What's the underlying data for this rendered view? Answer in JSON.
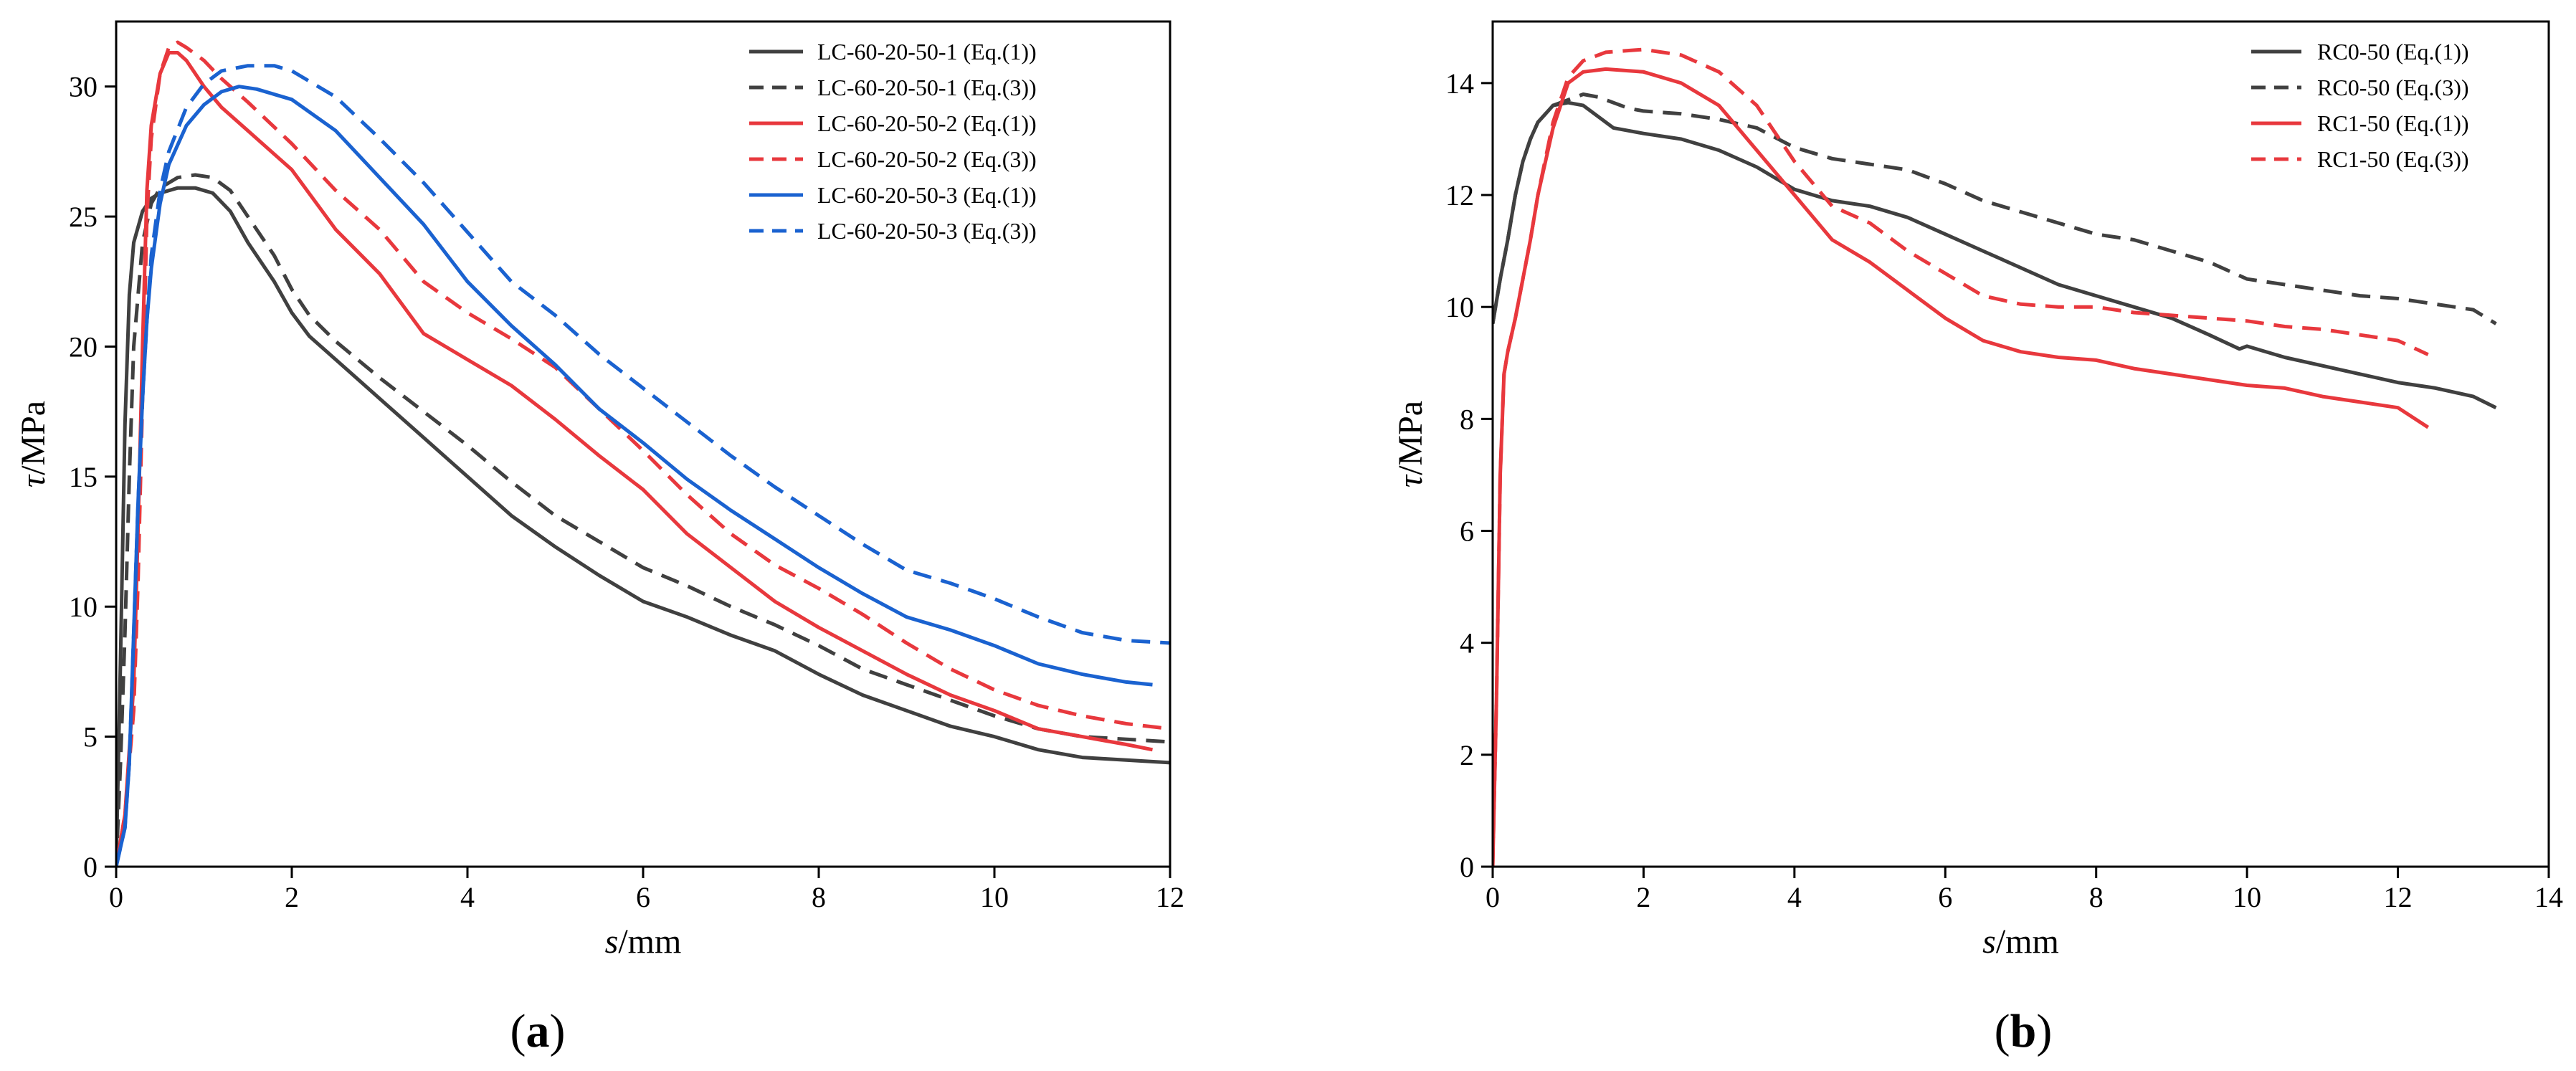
{
  "chart_data": [
    {
      "id": "a",
      "type": "line",
      "panel_label": "a",
      "xlabel_var": "s",
      "xlabel_unit": "/mm",
      "ylabel_var": "τ",
      "ylabel_unit": "/MPa",
      "xlim": [
        0,
        12
      ],
      "ylim": [
        0,
        32.5
      ],
      "xticks": [
        0,
        2,
        4,
        6,
        8,
        10,
        12
      ],
      "yticks": [
        0,
        5,
        10,
        15,
        20,
        25,
        30
      ],
      "legend_position": "top-right",
      "series": [
        {
          "name": "LC-60-20-50-1 (Eq.(1))",
          "color": "#404040",
          "style": "solid",
          "x": [
            0,
            0.05,
            0.1,
            0.15,
            0.2,
            0.3,
            0.4,
            0.5,
            0.7,
            0.9,
            1.1,
            1.3,
            1.5,
            1.8,
            2.0,
            2.2,
            2.5,
            3.0,
            3.5,
            4.0,
            4.5,
            5.0,
            5.5,
            6.0,
            6.5,
            7.0,
            7.5,
            8.0,
            8.5,
            9.0,
            9.5,
            10.0,
            10.5,
            11.0,
            11.5,
            12.0
          ],
          "y": [
            0,
            8,
            17,
            22,
            24,
            25.2,
            25.7,
            25.9,
            26.1,
            26.1,
            25.9,
            25.2,
            24,
            22.5,
            21.3,
            20.4,
            19.5,
            18,
            16.5,
            15,
            13.5,
            12.3,
            11.2,
            10.2,
            9.6,
            8.9,
            8.3,
            7.4,
            6.6,
            6,
            5.4,
            5,
            4.5,
            4.2,
            4.1,
            4
          ]
        },
        {
          "name": "LC-60-20-50-1 (Eq.(3))",
          "color": "#404040",
          "style": "dashed",
          "x": [
            0,
            0.05,
            0.1,
            0.15,
            0.2,
            0.3,
            0.4,
            0.5,
            0.7,
            0.9,
            1.1,
            1.3,
            1.5,
            1.8,
            2.0,
            2.2,
            2.5,
            3.0,
            3.5,
            4.0,
            4.5,
            5.0,
            5.5,
            6.0,
            6.5,
            7.0,
            7.5,
            8.0,
            8.5,
            9.0,
            9.5,
            10.0,
            10.5,
            11.0,
            11.5,
            12.0
          ],
          "y": [
            0,
            4,
            9,
            15,
            20,
            24,
            25.5,
            26.1,
            26.5,
            26.6,
            26.5,
            26,
            25,
            23.5,
            22.2,
            21.2,
            20.2,
            18.8,
            17.5,
            16.2,
            14.8,
            13.5,
            12.5,
            11.5,
            10.8,
            10,
            9.3,
            8.5,
            7.6,
            7,
            6.4,
            5.8,
            5.3,
            5,
            4.9,
            4.8
          ]
        },
        {
          "name": "LC-60-20-50-2 (Eq.(1))",
          "color": "#e8383d",
          "style": "solid",
          "x": [
            0,
            0.1,
            0.2,
            0.25,
            0.3,
            0.35,
            0.4,
            0.5,
            0.6,
            0.7,
            0.8,
            1.0,
            1.2,
            1.5,
            2.0,
            2.5,
            3.0,
            3.5,
            4.0,
            4.5,
            5.0,
            5.5,
            6.0,
            6.5,
            7.0,
            7.5,
            8.0,
            8.5,
            9.0,
            9.5,
            10.0,
            10.5,
            11.0,
            11.5,
            11.8
          ],
          "y": [
            0,
            2,
            7,
            13,
            20,
            26,
            28.5,
            30.5,
            31.3,
            31.3,
            31,
            30,
            29.2,
            28.3,
            26.8,
            24.5,
            22.8,
            20.5,
            19.5,
            18.5,
            17.2,
            15.8,
            14.5,
            12.8,
            11.5,
            10.2,
            9.2,
            8.3,
            7.4,
            6.6,
            6,
            5.3,
            5,
            4.7,
            4.5
          ]
        },
        {
          "name": "LC-60-20-50-2 (Eq.(3))",
          "color": "#e8383d",
          "style": "dashed",
          "x": [
            0,
            0.1,
            0.2,
            0.25,
            0.3,
            0.35,
            0.4,
            0.5,
            0.6,
            0.7,
            0.8,
            1.0,
            1.2,
            1.5,
            2.0,
            2.5,
            3.0,
            3.5,
            4.0,
            4.5,
            5.0,
            5.5,
            6.0,
            6.5,
            7.0,
            7.5,
            8.0,
            8.5,
            9.0,
            9.5,
            10.0,
            10.5,
            11.0,
            11.5,
            12.0
          ],
          "y": [
            0,
            2,
            6,
            11,
            18,
            25,
            28,
            30.5,
            31.5,
            31.7,
            31.5,
            31,
            30.3,
            29.4,
            27.8,
            26,
            24.5,
            22.5,
            21.3,
            20.3,
            19.2,
            17.6,
            16,
            14.3,
            12.8,
            11.6,
            10.7,
            9.7,
            8.6,
            7.6,
            6.8,
            6.2,
            5.8,
            5.5,
            5.3
          ]
        },
        {
          "name": "LC-60-20-50-3 (Eq.(1))",
          "color": "#1a62d0",
          "style": "solid",
          "x": [
            0,
            0.1,
            0.15,
            0.2,
            0.25,
            0.3,
            0.35,
            0.4,
            0.5,
            0.6,
            0.8,
            1.0,
            1.2,
            1.4,
            1.6,
            2.0,
            2.5,
            3.0,
            3.5,
            4.0,
            4.5,
            5.0,
            5.5,
            6.0,
            6.5,
            7.0,
            7.5,
            8.0,
            8.5,
            9.0,
            9.5,
            10.0,
            10.5,
            11.0,
            11.5,
            11.8
          ],
          "y": [
            0,
            1.5,
            4,
            9,
            14,
            18,
            21,
            23,
            25.5,
            27,
            28.5,
            29.3,
            29.8,
            30,
            29.9,
            29.5,
            28.3,
            26.5,
            24.7,
            22.5,
            20.8,
            19.3,
            17.6,
            16.3,
            14.9,
            13.7,
            12.6,
            11.5,
            10.5,
            9.6,
            9.1,
            8.5,
            7.8,
            7.4,
            7.1,
            7
          ]
        },
        {
          "name": "LC-60-20-50-3 (Eq.(3))",
          "color": "#1a62d0",
          "style": "dashed",
          "x": [
            0,
            0.1,
            0.15,
            0.2,
            0.25,
            0.3,
            0.35,
            0.4,
            0.5,
            0.6,
            0.8,
            1.0,
            1.2,
            1.5,
            1.8,
            2.0,
            2.5,
            3.0,
            3.5,
            4.0,
            4.5,
            5.0,
            5.5,
            6.0,
            6.5,
            7.0,
            7.5,
            8.0,
            8.5,
            9.0,
            9.5,
            10.0,
            10.5,
            11.0,
            11.5,
            12.0
          ],
          "y": [
            0,
            1.5,
            4,
            9,
            14,
            18,
            21,
            23.5,
            26,
            27.5,
            29.2,
            30.1,
            30.6,
            30.8,
            30.8,
            30.6,
            29.6,
            28,
            26.3,
            24.4,
            22.5,
            21.2,
            19.7,
            18.4,
            17.1,
            15.8,
            14.6,
            13.5,
            12.4,
            11.4,
            10.9,
            10.3,
            9.6,
            9,
            8.7,
            8.6
          ]
        }
      ]
    },
    {
      "id": "b",
      "type": "line",
      "panel_label": "b",
      "xlabel_var": "s",
      "xlabel_unit": "/mm",
      "ylabel_var": "τ",
      "ylabel_unit": "/MPa",
      "xlim": [
        0,
        14
      ],
      "ylim": [
        0,
        15.1
      ],
      "xticks": [
        0,
        2,
        4,
        6,
        8,
        10,
        12,
        14
      ],
      "yticks": [
        0,
        2,
        4,
        6,
        8,
        10,
        12,
        14
      ],
      "legend_position": "top-right",
      "series": [
        {
          "name": "RC0-50 (Eq.(1))",
          "color": "#404040",
          "style": "solid",
          "x": [
            0,
            0.1,
            0.2,
            0.3,
            0.4,
            0.5,
            0.6,
            0.8,
            1.0,
            1.2,
            1.4,
            1.6,
            1.8,
            2.0,
            2.5,
            3.0,
            3.5,
            4.0,
            4.5,
            5.0,
            5.5,
            6.0,
            6.5,
            7.0,
            7.5,
            8.0,
            8.5,
            9.0,
            9.5,
            9.9,
            10.0,
            10.5,
            11.0,
            11.5,
            12.0,
            12.5,
            13.0,
            13.3
          ],
          "y": [
            9.7,
            10.5,
            11.2,
            12,
            12.6,
            13,
            13.3,
            13.6,
            13.65,
            13.6,
            13.4,
            13.2,
            13.15,
            13.1,
            13,
            12.8,
            12.5,
            12.1,
            11.9,
            11.8,
            11.6,
            11.3,
            11,
            10.7,
            10.4,
            10.2,
            10,
            9.8,
            9.5,
            9.25,
            9.3,
            9.1,
            8.95,
            8.8,
            8.65,
            8.55,
            8.4,
            8.2
          ]
        },
        {
          "name": "RC0-50 (Eq.(3))",
          "color": "#404040",
          "style": "dashed",
          "x": [
            0,
            0.1,
            0.2,
            0.3,
            0.4,
            0.5,
            0.6,
            0.8,
            1.0,
            1.2,
            1.4,
            1.6,
            1.8,
            2.0,
            2.5,
            3.0,
            3.5,
            4.0,
            4.5,
            5.0,
            5.5,
            6.0,
            6.5,
            7.0,
            7.5,
            8.0,
            8.5,
            9.0,
            9.5,
            10.0,
            10.5,
            11.0,
            11.5,
            12.0,
            12.5,
            13.0,
            13.3
          ],
          "y": [
            9.7,
            10.5,
            11.2,
            12,
            12.6,
            13,
            13.3,
            13.6,
            13.7,
            13.8,
            13.75,
            13.65,
            13.55,
            13.5,
            13.45,
            13.35,
            13.2,
            12.85,
            12.65,
            12.55,
            12.45,
            12.2,
            11.9,
            11.7,
            11.5,
            11.3,
            11.2,
            11,
            10.8,
            10.5,
            10.4,
            10.3,
            10.2,
            10.15,
            10.05,
            9.95,
            9.7
          ]
        },
        {
          "name": "RC1-50 (Eq.(1))",
          "color": "#e8383d",
          "style": "solid",
          "x": [
            0,
            0.05,
            0.1,
            0.15,
            0.2,
            0.3,
            0.4,
            0.5,
            0.6,
            0.8,
            1.0,
            1.2,
            1.5,
            2.0,
            2.5,
            3.0,
            3.5,
            4.0,
            4.5,
            5.0,
            5.5,
            6.0,
            6.5,
            7.0,
            7.5,
            8.0,
            8.5,
            9.0,
            9.5,
            10.0,
            10.5,
            11.0,
            11.5,
            12.0,
            12.4
          ],
          "y": [
            0,
            3,
            7,
            8.8,
            9.2,
            9.8,
            10.5,
            11.2,
            12,
            13.2,
            14,
            14.2,
            14.25,
            14.2,
            14,
            13.6,
            12.8,
            12,
            11.2,
            10.8,
            10.3,
            9.8,
            9.4,
            9.2,
            9.1,
            9.05,
            8.9,
            8.8,
            8.7,
            8.6,
            8.55,
            8.4,
            8.3,
            8.2,
            7.85
          ]
        },
        {
          "name": "RC1-50 (Eq.(3))",
          "color": "#e8383d",
          "style": "dashed",
          "x": [
            0,
            0.05,
            0.1,
            0.15,
            0.2,
            0.3,
            0.4,
            0.5,
            0.6,
            0.8,
            1.0,
            1.2,
            1.5,
            2.0,
            2.5,
            3.0,
            3.5,
            4.0,
            4.5,
            5.0,
            5.5,
            6.0,
            6.5,
            7.0,
            7.5,
            8.0,
            8.5,
            9.0,
            9.5,
            10.0,
            10.5,
            11.0,
            11.5,
            12.0,
            12.4
          ],
          "y": [
            0,
            3,
            7,
            8.8,
            9.2,
            9.8,
            10.5,
            11.2,
            12,
            13.3,
            14.1,
            14.4,
            14.55,
            14.6,
            14.5,
            14.2,
            13.6,
            12.6,
            11.8,
            11.5,
            11,
            10.6,
            10.2,
            10.05,
            10,
            10,
            9.9,
            9.85,
            9.8,
            9.75,
            9.65,
            9.6,
            9.5,
            9.4,
            9.15
          ]
        }
      ]
    }
  ]
}
